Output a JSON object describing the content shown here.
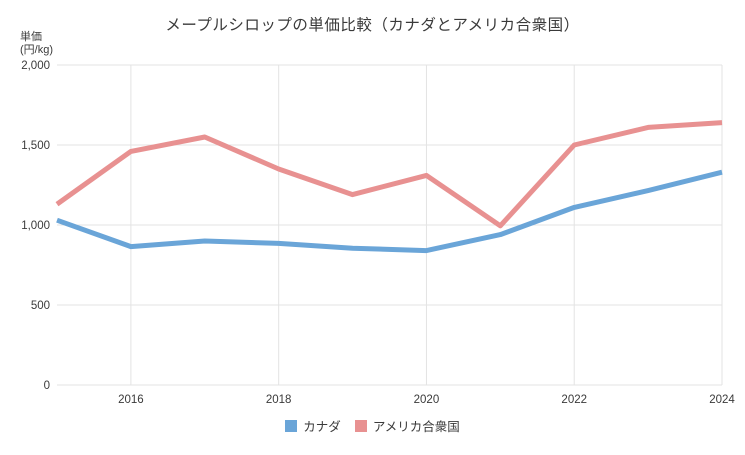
{
  "title": "メープルシロップの単価比較（カナダとアメリカ合衆国）",
  "y_axis_unit": {
    "line1": "単価",
    "line2": "(円/kg)"
  },
  "colors": {
    "canada_line": "#6aa5d8",
    "usa_line": "#e89191",
    "grid": "#e3e3e3",
    "text": "#3a3a3a",
    "background": "#ffffff"
  },
  "legend": {
    "items": [
      {
        "label": "カナダ",
        "color": "#6aa5d8"
      },
      {
        "label": "アメリカ合衆国",
        "color": "#e89191"
      }
    ]
  },
  "chart_data": {
    "type": "line",
    "title": "メープルシロップの単価比較（カナダとアメリカ合衆国）",
    "ylabel": "単価(円/kg)",
    "x": [
      2015,
      2016,
      2017,
      2018,
      2019,
      2020,
      2021,
      2022,
      2023,
      2024
    ],
    "series": [
      {
        "name": "カナダ",
        "color": "#6aa5d8",
        "values": [
          1030,
          865,
          900,
          885,
          855,
          840,
          940,
          1110,
          1215,
          1330
        ]
      },
      {
        "name": "アメリカ合衆国",
        "color": "#e89191",
        "values": [
          1130,
          1460,
          1550,
          1350,
          1190,
          1310,
          995,
          1500,
          1610,
          1640
        ]
      }
    ],
    "xlim": [
      2015,
      2024
    ],
    "ylim": [
      0,
      2000
    ],
    "y_ticks": [
      0,
      500,
      1000,
      1500,
      2000
    ],
    "y_tick_labels": [
      "0",
      "500",
      "1,000",
      "1,500",
      "2,000"
    ],
    "x_tick_values": [
      2016,
      2018,
      2020,
      2022,
      2024
    ],
    "x_tick_labels": [
      "2016",
      "2018",
      "2020",
      "2022",
      "2024"
    ],
    "grid": true,
    "legend_position": "bottom"
  }
}
